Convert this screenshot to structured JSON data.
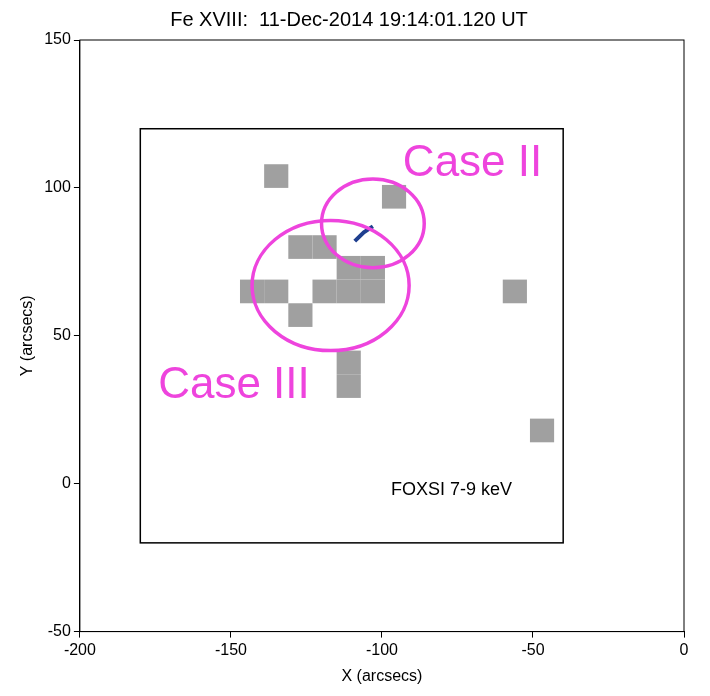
{
  "chart_data": {
    "type": "image",
    "title": "Fe XVIII:  11-Dec-2014 19:14:01.120 UT",
    "x_label": "X (arcsecs)",
    "y_label": "Y (arcsecs)",
    "xlim": [
      -200,
      0
    ],
    "ylim": [
      -50,
      150
    ],
    "xticks": [
      -200,
      -150,
      -100,
      -50,
      0
    ],
    "yticks": [
      -50,
      0,
      50,
      100,
      150
    ],
    "grid": false,
    "pixels": {
      "size": 8,
      "color": "#a0a0a0",
      "centers": [
        [
          -135,
          104
        ],
        [
          -96,
          97
        ],
        [
          -127,
          80
        ],
        [
          -119,
          80
        ],
        [
          -111,
          73
        ],
        [
          -103,
          73
        ],
        [
          -143,
          65
        ],
        [
          -135,
          65
        ],
        [
          -119,
          65
        ],
        [
          -111,
          65
        ],
        [
          -103,
          65
        ],
        [
          -127,
          57
        ],
        [
          -111,
          41
        ],
        [
          -111,
          33
        ],
        [
          -56,
          65
        ],
        [
          -47,
          18
        ]
      ]
    },
    "box": {
      "x": [
        -180,
        -40
      ],
      "y": [
        -20,
        120
      ],
      "color": "#000000"
    },
    "emission": {
      "color": "#1f3f8f",
      "points": [
        [
          -109,
          82
        ],
        [
          -106,
          85
        ],
        [
          -103,
          87
        ]
      ]
    },
    "regions": [
      {
        "label": "Case II",
        "center": [
          -103,
          88
        ],
        "radii": [
          17,
          15
        ],
        "label_at": [
          -70,
          108
        ],
        "color": "#ee44dd"
      },
      {
        "label": "Case III",
        "center": [
          -117,
          67
        ],
        "radii": [
          26,
          22
        ],
        "label_at": [
          -149,
          33
        ],
        "color": "#ee44dd"
      }
    ],
    "annotations": [
      {
        "text": "FOXSI 7-9 keV",
        "x": -77,
        "y": -2,
        "color": "#000000"
      }
    ]
  }
}
